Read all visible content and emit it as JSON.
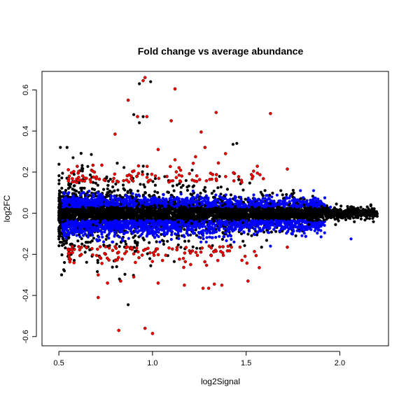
{
  "chart_data": {
    "type": "scatter",
    "title": "Fold change vs average abundance",
    "xlabel": "log2Signal",
    "ylabel": "log2FC",
    "xlim": [
      0.41,
      2.26
    ],
    "ylim": [
      -0.645,
      0.69
    ],
    "x_ticks": [
      0.5,
      1.0,
      1.5,
      2.0
    ],
    "x_tick_labels": [
      "0.5",
      "1.0",
      "1.5",
      "2.0"
    ],
    "y_ticks": [
      -0.6,
      -0.4,
      -0.2,
      0.0,
      0.2,
      0.4,
      0.6
    ],
    "y_tick_labels": [
      "-0.6",
      "-0.4",
      "-0.2",
      "0.0",
      "0.2",
      "0.4",
      "0.6"
    ],
    "grid": false,
    "colors": {
      "black": "#000000",
      "blue": "#0000ff",
      "red": "#ff0000"
    },
    "highlighted_points": [
      {
        "x": 0.96,
        "y": 0.66,
        "color": "red"
      },
      {
        "x": 0.95,
        "y": 0.645,
        "color": "red"
      },
      {
        "x": 0.93,
        "y": 0.63,
        "color": "black"
      },
      {
        "x": 0.99,
        "y": 0.64,
        "color": "black"
      },
      {
        "x": 1.12,
        "y": 0.605,
        "color": "red"
      },
      {
        "x": 0.87,
        "y": 0.55,
        "color": "red"
      },
      {
        "x": 1.34,
        "y": 0.49,
        "color": "red"
      },
      {
        "x": 1.63,
        "y": 0.485,
        "color": "red"
      },
      {
        "x": 0.92,
        "y": 0.47,
        "color": "red"
      },
      {
        "x": 0.97,
        "y": 0.47,
        "color": "red"
      },
      {
        "x": 1.1,
        "y": 0.45,
        "color": "red"
      },
      {
        "x": 1.26,
        "y": 0.395,
        "color": "red"
      },
      {
        "x": 0.8,
        "y": 0.385,
        "color": "red"
      },
      {
        "x": 1.28,
        "y": 0.32,
        "color": "red"
      },
      {
        "x": 1.03,
        "y": 0.31,
        "color": "red"
      },
      {
        "x": 1.45,
        "y": 0.34,
        "color": "black"
      },
      {
        "x": 1.43,
        "y": 0.335,
        "color": "black"
      },
      {
        "x": 1.39,
        "y": 0.29,
        "color": "red"
      },
      {
        "x": 1.12,
        "y": 0.26,
        "color": "red"
      },
      {
        "x": 1.23,
        "y": 0.275,
        "color": "red"
      },
      {
        "x": 1.72,
        "y": 0.215,
        "color": "red"
      },
      {
        "x": 1.56,
        "y": 0.195,
        "color": "red"
      },
      {
        "x": 0.82,
        "y": -0.57,
        "color": "red"
      },
      {
        "x": 0.96,
        "y": -0.56,
        "color": "red"
      },
      {
        "x": 1.0,
        "y": -0.585,
        "color": "red"
      },
      {
        "x": 0.87,
        "y": -0.445,
        "color": "black"
      },
      {
        "x": 0.71,
        "y": -0.41,
        "color": "red"
      },
      {
        "x": 0.76,
        "y": -0.34,
        "color": "red"
      },
      {
        "x": 0.83,
        "y": -0.33,
        "color": "red"
      },
      {
        "x": 1.03,
        "y": -0.34,
        "color": "red"
      },
      {
        "x": 1.17,
        "y": -0.35,
        "color": "red"
      },
      {
        "x": 1.27,
        "y": -0.365,
        "color": "red"
      },
      {
        "x": 1.3,
        "y": -0.365,
        "color": "red"
      },
      {
        "x": 1.37,
        "y": -0.35,
        "color": "red"
      },
      {
        "x": 1.33,
        "y": -0.345,
        "color": "red"
      },
      {
        "x": 1.51,
        "y": -0.33,
        "color": "red"
      },
      {
        "x": 1.57,
        "y": -0.265,
        "color": "red"
      },
      {
        "x": 1.72,
        "y": -0.165,
        "color": "red"
      },
      {
        "x": 0.9,
        "y": -0.31,
        "color": "red"
      },
      {
        "x": 0.71,
        "y": -0.3,
        "color": "red"
      },
      {
        "x": 1.63,
        "y": -0.16,
        "color": "blue"
      },
      {
        "x": 1.79,
        "y": 0.11,
        "color": "blue"
      },
      {
        "x": 1.86,
        "y": 0.11,
        "color": "blue"
      },
      {
        "x": 1.9,
        "y": -0.115,
        "color": "blue"
      },
      {
        "x": 2.06,
        "y": -0.125,
        "color": "blue"
      },
      {
        "x": 1.92,
        "y": 0.075,
        "color": "blue"
      },
      {
        "x": 1.95,
        "y": 0.03,
        "color": "blue"
      },
      {
        "x": 2.2,
        "y": -0.015,
        "color": "black"
      },
      {
        "x": 2.17,
        "y": -0.01,
        "color": "black"
      },
      {
        "x": 0.93,
        "y": 0.44,
        "color": "black"
      },
      {
        "x": 0.95,
        "y": 0.47,
        "color": "black"
      },
      {
        "x": 0.9,
        "y": 0.48,
        "color": "black"
      }
    ],
    "dense_bands": {
      "black_core": {
        "x_range": [
          0.5,
          2.2
        ],
        "y_center": 0.0,
        "y_spread_max": 0.1,
        "approx_points": 2600
      },
      "black_outer": {
        "x_range": [
          0.5,
          1.9
        ],
        "y_spread_max": 0.3,
        "approx_points": 1100
      },
      "blue_upper": {
        "x_range": [
          0.52,
          1.92
        ],
        "y_range": [
          0.01,
          0.12
        ],
        "approx_points": 900
      },
      "blue_lower": {
        "x_range": [
          0.52,
          1.92
        ],
        "y_range": [
          -0.14,
          -0.01
        ],
        "approx_points": 1200
      },
      "red_upper": {
        "x_range": [
          0.55,
          1.6
        ],
        "y_range": [
          0.14,
          0.3
        ],
        "approx_points": 110
      },
      "red_lower": {
        "x_range": [
          0.55,
          1.6
        ],
        "y_range": [
          -0.28,
          -0.14
        ],
        "approx_points": 120
      }
    }
  }
}
